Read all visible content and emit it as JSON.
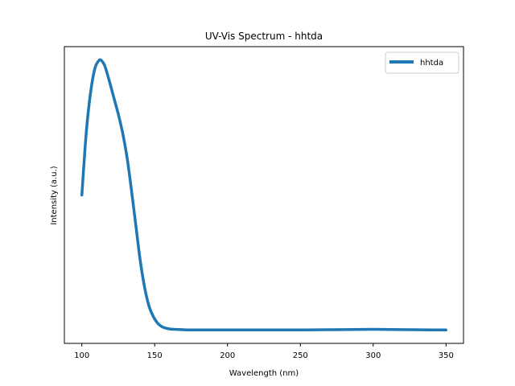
{
  "chart_data": {
    "type": "line",
    "title": "UV-Vis Spectrum - hhtda",
    "xlabel": "Wavelength (nm)",
    "ylabel": "Intensity (a.u.)",
    "xlim": [
      88,
      362
    ],
    "ylim": [
      -0.05,
      1.05
    ],
    "xticks": [
      100,
      150,
      200,
      250,
      300,
      350
    ],
    "yticks_shown": false,
    "grid": false,
    "legend": {
      "position": "upper right",
      "entries": [
        "hhtda"
      ]
    },
    "series": [
      {
        "name": "hhtda",
        "color": "#1f77b4",
        "x": [
          100,
          103,
          106,
          109,
          112,
          114,
          116,
          119,
          122,
          125,
          128,
          131,
          134,
          137,
          140,
          143,
          146,
          149,
          152,
          155,
          158,
          161,
          164,
          168,
          172,
          180,
          190,
          200,
          220,
          250,
          280,
          300,
          320,
          340,
          350
        ],
        "y": [
          0.5,
          0.73,
          0.88,
          0.97,
          1.0,
          0.995,
          0.975,
          0.92,
          0.86,
          0.8,
          0.73,
          0.64,
          0.52,
          0.39,
          0.26,
          0.16,
          0.09,
          0.05,
          0.025,
          0.012,
          0.006,
          0.003,
          0.002,
          0.001,
          0.0,
          0.0,
          0.0,
          0.0,
          0.0,
          0.0,
          0.001,
          0.002,
          0.001,
          0.0,
          0.0
        ]
      }
    ]
  }
}
